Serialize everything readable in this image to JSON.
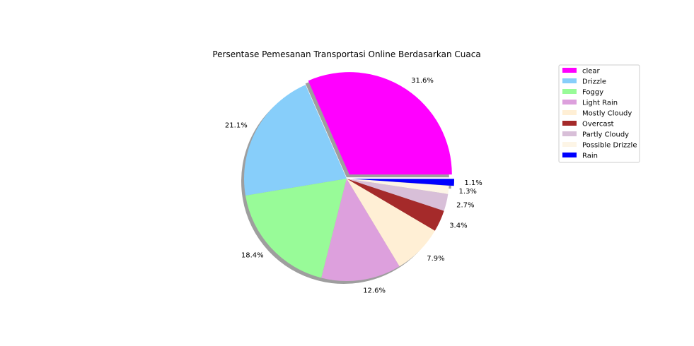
{
  "chart_data": {
    "type": "pie",
    "title": "Persentase Pemesanan Transportasi Online Berdasarkan Cuaca",
    "labels": [
      "clear",
      "Drizzle",
      "Foggy",
      "Light Rain",
      "Mostly Cloudy",
      "Overcast",
      "Partly Cloudy",
      "Possible Drizzle",
      "Rain"
    ],
    "values": [
      31.6,
      21.1,
      18.4,
      12.6,
      7.9,
      3.4,
      2.7,
      1.3,
      1.1
    ],
    "value_labels": [
      "31.6%",
      "21.1%",
      "18.4%",
      "12.6%",
      "7.9%",
      "3.4%",
      "2.7%",
      "1.3%",
      "1.1%"
    ],
    "colors": [
      "#ff00ff",
      "#87cefa",
      "#98fb98",
      "#dda0dd",
      "#ffefd5",
      "#a52a2a",
      "#d8bfd8",
      "#fdf5e6",
      "#0000ff"
    ],
    "exploded": [
      "clear",
      "Rain"
    ],
    "shadow": true,
    "start_angle_deg": 0,
    "direction": "counterclockwise",
    "legend_placement": "upper-right"
  }
}
